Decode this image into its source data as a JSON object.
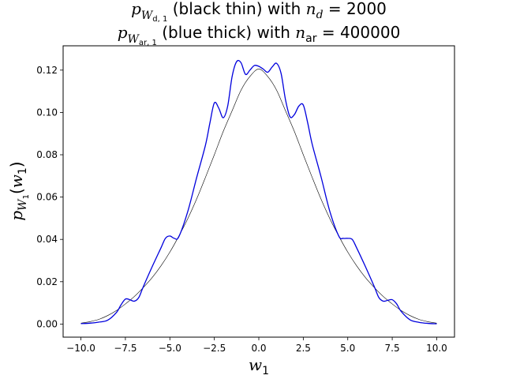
{
  "chart_data": {
    "type": "line",
    "title": {
      "line1": {
        "prefix": "p",
        "subscript": "W",
        "subsub": "d, 1",
        "rest": " (black thin) with ",
        "var": "n",
        "var_sub": "d",
        "eq": " = 2000"
      },
      "line2": {
        "prefix": "p",
        "subscript": "W",
        "subsub": "ar, 1",
        "rest": " (blue thick) with ",
        "var": "n",
        "var_sub": "ar",
        "eq": " = 400000"
      }
    },
    "xlabel": {
      "base": "w",
      "sub": "1"
    },
    "ylabel": {
      "base": "p",
      "sub": "W",
      "subsub": "1",
      "arg_open": "(",
      "arg": "w",
      "arg_sub": "1",
      "arg_close": ")"
    },
    "xlim": [
      -11.0,
      11.0
    ],
    "ylim": [
      -0.0062,
      0.1315
    ],
    "x_ticks": [
      -10.0,
      -7.5,
      -5.0,
      -2.5,
      0.0,
      2.5,
      5.0,
      7.5,
      10.0
    ],
    "x_tick_labels": [
      "−10.0",
      "−7.5",
      "−5.0",
      "−2.5",
      "0.0",
      "2.5",
      "5.0",
      "7.5",
      "10.0"
    ],
    "y_ticks": [
      0.0,
      0.02,
      0.04,
      0.06,
      0.08,
      0.1,
      0.12
    ],
    "y_tick_labels": [
      "0.00",
      "0.02",
      "0.04",
      "0.06",
      "0.08",
      "0.10",
      "0.12"
    ],
    "grid": false,
    "series": [
      {
        "color": "#000000",
        "style": "thin",
        "x": [
          -10.0,
          -9.5,
          -9.0,
          -8.5,
          -8.0,
          -7.5,
          -7.0,
          -6.5,
          -6.0,
          -5.5,
          -5.0,
          -4.5,
          -4.0,
          -3.5,
          -3.0,
          -2.5,
          -2.0,
          -1.5,
          -1.0,
          -0.5,
          0.0,
          0.5,
          1.0,
          1.5,
          2.0,
          2.5,
          3.0,
          3.5,
          4.0,
          4.5,
          5.0,
          5.5,
          6.0,
          6.5,
          7.0,
          7.5,
          8.0,
          8.5,
          9.0,
          9.5,
          10.0
        ],
        "y": [
          0.0004,
          0.0011,
          0.0022,
          0.004,
          0.0064,
          0.0095,
          0.013,
          0.0172,
          0.0219,
          0.0275,
          0.034,
          0.0415,
          0.0497,
          0.059,
          0.0693,
          0.08,
          0.091,
          0.1008,
          0.1105,
          0.117,
          0.1205,
          0.117,
          0.1105,
          0.1008,
          0.091,
          0.08,
          0.0693,
          0.059,
          0.0497,
          0.0415,
          0.034,
          0.0275,
          0.0219,
          0.0172,
          0.013,
          0.0095,
          0.0064,
          0.004,
          0.0022,
          0.0011,
          0.0004
        ]
      },
      {
        "color": "#0000dd",
        "style": "thick",
        "x": [
          -10.0,
          -9.5,
          -9.0,
          -8.5,
          -8.0,
          -7.75,
          -7.5,
          -7.25,
          -7.0,
          -6.75,
          -6.5,
          -6.0,
          -5.5,
          -5.25,
          -5.0,
          -4.75,
          -4.5,
          -4.0,
          -3.5,
          -3.0,
          -2.75,
          -2.5,
          -2.25,
          -2.0,
          -1.75,
          -1.5,
          -1.25,
          -1.0,
          -0.75,
          -0.5,
          -0.25,
          0.0,
          0.25,
          0.5,
          0.75,
          1.0,
          1.25,
          1.5,
          1.75,
          2.0,
          2.25,
          2.5,
          2.75,
          3.0,
          3.5,
          4.0,
          4.5,
          4.75,
          5.0,
          5.25,
          5.5,
          6.0,
          6.5,
          6.75,
          7.0,
          7.25,
          7.5,
          7.75,
          8.0,
          8.5,
          9.0,
          9.5,
          10.0
        ],
        "y": [
          0.0002,
          0.0004,
          0.0009,
          0.0018,
          0.0055,
          0.009,
          0.0118,
          0.0115,
          0.0108,
          0.0125,
          0.0175,
          0.027,
          0.036,
          0.0405,
          0.0416,
          0.0405,
          0.0412,
          0.053,
          0.069,
          0.0845,
          0.095,
          0.1045,
          0.102,
          0.0975,
          0.103,
          0.117,
          0.124,
          0.1235,
          0.118,
          0.12,
          0.1222,
          0.1218,
          0.1205,
          0.119,
          0.1215,
          0.1232,
          0.1185,
          0.106,
          0.098,
          0.099,
          0.103,
          0.1035,
          0.095,
          0.085,
          0.0695,
          0.053,
          0.0415,
          0.0405,
          0.0405,
          0.04,
          0.036,
          0.027,
          0.0175,
          0.0125,
          0.0108,
          0.0112,
          0.0115,
          0.0095,
          0.006,
          0.002,
          0.0008,
          0.0003,
          0.0001
        ]
      }
    ]
  }
}
